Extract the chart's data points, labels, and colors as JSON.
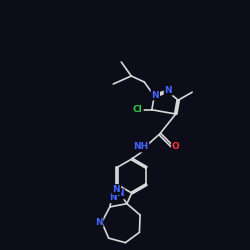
{
  "bg_color": "#0d0d1a",
  "bond_color": "#d8d8d8",
  "atom_colors": {
    "N": "#4466ff",
    "O": "#ff3333",
    "Cl": "#33cc44",
    "C": "#d8d8d8"
  },
  "bond_width": 1.2,
  "font_size_atom": 6.5,
  "figsize": [
    2.5,
    2.5
  ],
  "dpi": 100
}
